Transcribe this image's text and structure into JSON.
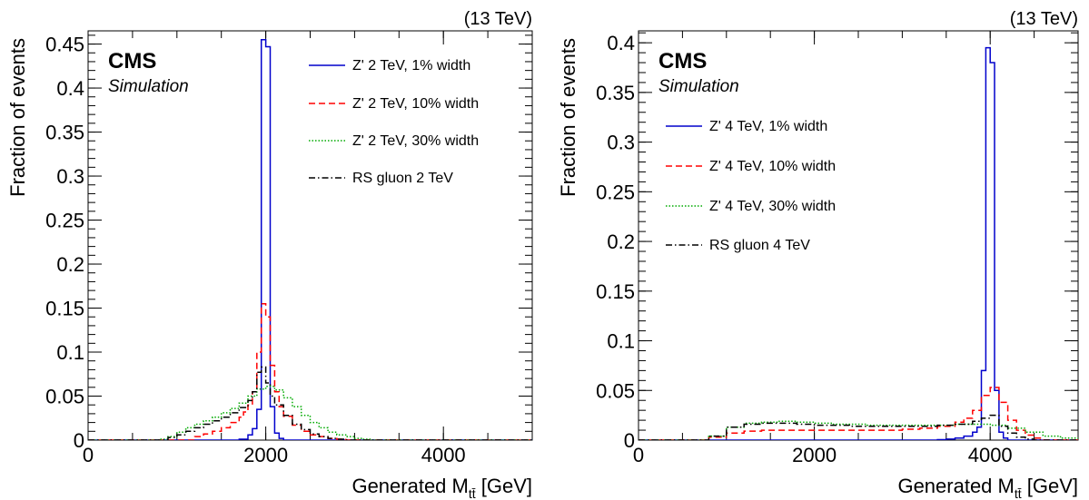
{
  "chart_data": [
    {
      "type": "line",
      "energy_label": "(13 TeV)",
      "experiment": "CMS",
      "subtitle": "Simulation",
      "xlabel_main": "Generated M",
      "xlabel_sub": "tt̄",
      "xlabel_unit": "[GeV]",
      "ylabel": "Fraction of events",
      "xlim": [
        0,
        5000
      ],
      "ylim": [
        0,
        0.465
      ],
      "x_ticks": [
        0,
        2000,
        4000
      ],
      "x_tick_labels": [
        "0",
        "2000",
        "4000"
      ],
      "y_ticks": [
        0,
        0.05,
        0.1,
        0.15,
        0.2,
        0.25,
        0.3,
        0.35,
        0.4,
        0.45
      ],
      "y_tick_labels": [
        "0",
        "0.05",
        "0.1",
        "0.15",
        "0.2",
        "0.25",
        "0.3",
        "0.35",
        "0.4",
        "0.45"
      ],
      "legend_position": "top-right",
      "series": [
        {
          "name": "Z' 2 TeV, 1% width",
          "color": "#0000cc",
          "style": "solid",
          "x": [
            1700,
            1800,
            1850,
            1900,
            1950,
            2000,
            2050,
            2100,
            2150,
            2200
          ],
          "y": [
            0.001,
            0.006,
            0.013,
            0.035,
            0.455,
            0.447,
            0.038,
            0.008,
            0.002,
            0.0
          ]
        },
        {
          "name": "Z' 2 TeV, 10% width",
          "color": "#ff0000",
          "style": "dashed",
          "x": [
            1200,
            1300,
            1400,
            1500,
            1600,
            1700,
            1750,
            1800,
            1850,
            1900,
            1950,
            2000,
            2050,
            2100,
            2150,
            2200,
            2300,
            2400,
            2500,
            2600,
            2700,
            2800
          ],
          "y": [
            0.004,
            0.007,
            0.01,
            0.014,
            0.02,
            0.026,
            0.032,
            0.04,
            0.055,
            0.1,
            0.155,
            0.14,
            0.085,
            0.055,
            0.038,
            0.027,
            0.017,
            0.01,
            0.006,
            0.004,
            0.002,
            0.001
          ]
        },
        {
          "name": "Z' 2 TeV, 30% width",
          "color": "#00aa00",
          "style": "dotted",
          "x": [
            800,
            900,
            1000,
            1100,
            1200,
            1300,
            1400,
            1500,
            1600,
            1700,
            1800,
            1900,
            2000,
            2100,
            2200,
            2300,
            2400,
            2500,
            2600,
            2700,
            2800,
            2900,
            3000,
            3100
          ],
          "y": [
            0.001,
            0.004,
            0.009,
            0.014,
            0.018,
            0.022,
            0.026,
            0.031,
            0.036,
            0.042,
            0.05,
            0.058,
            0.061,
            0.057,
            0.048,
            0.038,
            0.028,
            0.02,
            0.014,
            0.009,
            0.006,
            0.004,
            0.002,
            0.001
          ]
        },
        {
          "name": "RS gluon 2 TeV",
          "color": "#000000",
          "style": "dashdot",
          "x": [
            900,
            1000,
            1100,
            1200,
            1300,
            1400,
            1500,
            1600,
            1700,
            1800,
            1850,
            1900,
            1950,
            2000,
            2050,
            2100,
            2200,
            2300,
            2400,
            2500,
            2600,
            2700,
            2800
          ],
          "y": [
            0.003,
            0.006,
            0.01,
            0.014,
            0.018,
            0.022,
            0.026,
            0.031,
            0.037,
            0.045,
            0.055,
            0.077,
            0.083,
            0.065,
            0.05,
            0.04,
            0.028,
            0.018,
            0.012,
            0.007,
            0.004,
            0.002,
            0.001
          ]
        }
      ]
    },
    {
      "type": "line",
      "energy_label": "(13 TeV)",
      "experiment": "CMS",
      "subtitle": "Simulation",
      "xlabel_main": "Generated M",
      "xlabel_sub": "tt̄",
      "xlabel_unit": "[GeV]",
      "ylabel": "Fraction of events",
      "xlim": [
        0,
        5000
      ],
      "ylim": [
        0,
        0.412
      ],
      "x_ticks": [
        0,
        2000,
        4000
      ],
      "x_tick_labels": [
        "0",
        "2000",
        "4000"
      ],
      "y_ticks": [
        0,
        0.05,
        0.1,
        0.15,
        0.2,
        0.25,
        0.3,
        0.35,
        0.4
      ],
      "y_tick_labels": [
        "0",
        "0.05",
        "0.1",
        "0.15",
        "0.2",
        "0.25",
        "0.3",
        "0.35",
        "0.4"
      ],
      "legend_position": "middle-left",
      "series": [
        {
          "name": "Z' 4 TeV, 1% width",
          "color": "#0000cc",
          "style": "solid",
          "x": [
            3400,
            3500,
            3600,
            3700,
            3800,
            3850,
            3900,
            3950,
            4000,
            4050,
            4100,
            4150,
            4200
          ],
          "y": [
            0.0005,
            0.001,
            0.002,
            0.004,
            0.008,
            0.013,
            0.07,
            0.395,
            0.38,
            0.05,
            0.008,
            0.002,
            0.0
          ]
        },
        {
          "name": "Z' 4 TeV, 10% width",
          "color": "#ff0000",
          "style": "dashed",
          "x": [
            800,
            1000,
            1200,
            1400,
            1600,
            1800,
            2000,
            2200,
            2400,
            2600,
            2800,
            3000,
            3200,
            3400,
            3600,
            3700,
            3800,
            3900,
            4000,
            4100,
            4200,
            4300,
            4400,
            4500
          ],
          "y": [
            0.003,
            0.007,
            0.009,
            0.01,
            0.01,
            0.01,
            0.01,
            0.01,
            0.01,
            0.01,
            0.01,
            0.011,
            0.012,
            0.014,
            0.018,
            0.022,
            0.03,
            0.045,
            0.053,
            0.038,
            0.02,
            0.01,
            0.005,
            0.002
          ]
        },
        {
          "name": "Z' 4 TeV, 30% width",
          "color": "#00aa00",
          "style": "dotted",
          "x": [
            800,
            1000,
            1200,
            1400,
            1600,
            1800,
            2000,
            2200,
            2400,
            2600,
            2800,
            3000,
            3200,
            3400,
            3600,
            3800,
            4000,
            4200,
            4400,
            4600,
            4800,
            5000
          ],
          "y": [
            0.004,
            0.013,
            0.017,
            0.018,
            0.019,
            0.018,
            0.017,
            0.016,
            0.016,
            0.015,
            0.015,
            0.015,
            0.015,
            0.015,
            0.016,
            0.016,
            0.015,
            0.012,
            0.008,
            0.004,
            0.002,
            0.001
          ]
        },
        {
          "name": "RS gluon 4 TeV",
          "color": "#000000",
          "style": "dashdot",
          "x": [
            800,
            1000,
            1200,
            1400,
            1600,
            1800,
            2000,
            2200,
            2400,
            2600,
            2800,
            3000,
            3200,
            3400,
            3600,
            3800,
            3900,
            4000,
            4100,
            4200,
            4300,
            4400,
            4500
          ],
          "y": [
            0.004,
            0.013,
            0.016,
            0.017,
            0.017,
            0.016,
            0.015,
            0.015,
            0.014,
            0.014,
            0.014,
            0.014,
            0.014,
            0.015,
            0.016,
            0.019,
            0.022,
            0.025,
            0.014,
            0.007,
            0.003,
            0.001,
            0.0
          ]
        }
      ]
    }
  ]
}
